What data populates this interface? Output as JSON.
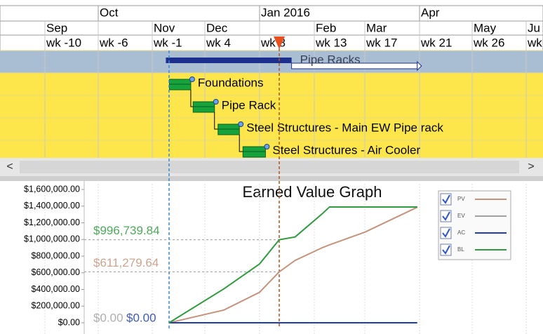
{
  "timescale": {
    "quarters": [
      "Oct",
      "Jan 2016",
      "Apr"
    ],
    "months": [
      "Sep",
      "Nov",
      "Dec",
      "Feb",
      "Mar",
      "May",
      "Ju"
    ],
    "weeks": [
      "wk -10",
      "wk -6",
      "wk -1",
      "wk 4",
      "wk 8",
      "wk 13",
      "wk 17",
      "wk 21",
      "wk 26",
      "wk"
    ]
  },
  "tasks": [
    {
      "name": "Pipe Racks",
      "start": 0.2,
      "finish": 10.8,
      "baseline_finish": 21.4
    },
    {
      "name": "Foundations",
      "start": 0.5,
      "finish": 2.3
    },
    {
      "name": "Pipe Rack",
      "start": 2.5,
      "finish": 4.3
    },
    {
      "name": "Steel Structures - Main EW Pipe rack",
      "start": 4.6,
      "finish": 6.4
    },
    {
      "name": "Steel Structures - Air Cooler",
      "start": 6.7,
      "finish": 8.6
    }
  ],
  "scroll_left": "<",
  "scroll_right": ">",
  "chart_data": {
    "type": "line",
    "title": "Earned Value Graph",
    "x": [
      0.47,
      5.1,
      8.1,
      9.76,
      11.1,
      13.4,
      14.0,
      17.0,
      21.4
    ],
    "xlim": [
      -10,
      32
    ],
    "ylim": [
      0,
      1600000
    ],
    "yticks": [
      {
        "value": 0,
        "label": "$0.00"
      },
      {
        "value": 200000,
        "label": "$200,000.00"
      },
      {
        "value": 400000,
        "label": "$400,000.00"
      },
      {
        "value": 600000,
        "label": "$600,000.00"
      },
      {
        "value": 800000,
        "label": "$800,000.00"
      },
      {
        "value": 1000000,
        "label": "$1,000,000.00"
      },
      {
        "value": 1200000,
        "label": "$1,200,000.00"
      },
      {
        "value": 1400000,
        "label": "$1,400,000.00"
      },
      {
        "value": 1600000,
        "label": "$1,600,000.00"
      }
    ],
    "project_start": 0.47,
    "status_date": 9.76,
    "series": [
      {
        "name": "PV",
        "color": "#c4937c",
        "values": [
          0,
          153000,
          366000,
          611279.64,
          749000,
          902000,
          935000,
          1089000,
          1387000
        ]
      },
      {
        "name": "EV",
        "color": "#a0a0a0",
        "values": [
          0,
          null,
          null,
          null,
          null,
          null,
          null,
          null,
          null
        ]
      },
      {
        "name": "AC",
        "color": "#1f3fa6",
        "values": [
          0,
          0,
          0,
          0,
          0,
          0,
          0,
          0,
          0
        ]
      },
      {
        "name": "BL",
        "color": "#2f9a3e",
        "values": [
          0,
          408000,
          706000,
          996739.84,
          1030000,
          1310000,
          1390000,
          1390000,
          1390000
        ]
      }
    ],
    "annotations": [
      {
        "value": 996739.84,
        "label": "$996,739.84",
        "color": "#2f9a3e"
      },
      {
        "value": 611279.64,
        "label": "$611,279.64",
        "color": "#c4937c"
      },
      {
        "value": 0,
        "label": "$0.00",
        "color": "#a0a0a0"
      },
      {
        "value": 0,
        "label": "$0.00",
        "color": "#1f3fa6"
      }
    ]
  }
}
